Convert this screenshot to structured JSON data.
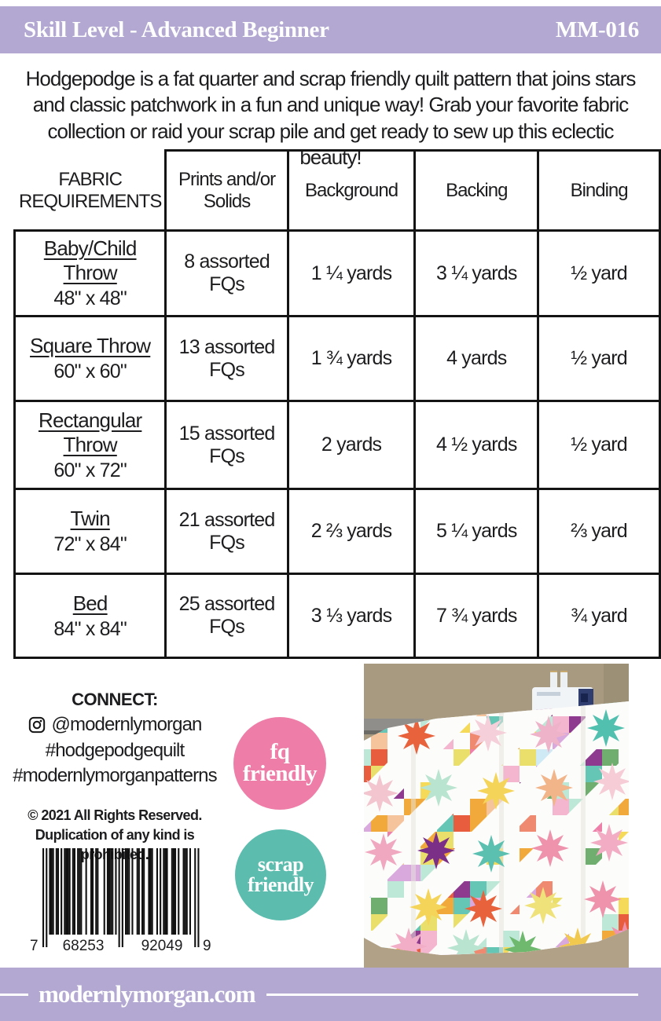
{
  "header": {
    "skill_level": "Skill Level - Advanced Beginner",
    "pattern_number": "MM-016"
  },
  "intro": "Hodgepodge is a fat quarter and scrap friendly quilt pattern that joins stars and classic patchwork in a fun and unique way!  Grab your favorite fabric collection or raid your scrap pile and get ready to sew up this eclectic beauty!",
  "table": {
    "header": {
      "col0": "FABRIC REQUIREMENTS",
      "col1": "Prints and/or Solids",
      "col2": "Background",
      "col3": "Backing",
      "col4": "Binding"
    },
    "rows": [
      {
        "name": "Baby/Child Throw",
        "size": "48\" x 48\"",
        "prints": "8 assorted FQs",
        "background": "1 ¼ yards",
        "backing": "3 ¼ yards",
        "binding": "½ yard"
      },
      {
        "name": "Square Throw",
        "size": "60\" x 60\"",
        "prints": "13 assorted FQs",
        "background": "1 ¾ yards",
        "backing": "4 yards",
        "binding": "½ yard"
      },
      {
        "name": "Rectangular Throw",
        "size": "60\" x 72\"",
        "prints": "15 assorted FQs",
        "background": "2 yards",
        "backing": "4 ½ yards",
        "binding": "½ yard"
      },
      {
        "name": "Twin",
        "size": "72\" x 84\"",
        "prints": "21 assorted FQs",
        "background": "2 ⅔ yards",
        "backing": "5 ¼ yards",
        "binding": "⅔ yard"
      },
      {
        "name": "Bed",
        "size": "84\" x 84\"",
        "prints": "25 assorted FQs",
        "background": "3 ⅓ yards",
        "backing": "7 ¾ yards",
        "binding": "¾ yard"
      }
    ]
  },
  "connect": {
    "title": "CONNECT:",
    "instagram_handle": "@modernlymorgan",
    "hashtag1": "#hodgepodgequilt",
    "hashtag2": "#modernlymorganpatterns"
  },
  "copyright": {
    "line1": "© 2021 All Rights Reserved.",
    "line2": "Duplication of any kind is prohibited."
  },
  "barcode": {
    "digit_left": "7",
    "digits_group1": "68253",
    "digits_group2": "92049",
    "digit_right": "9"
  },
  "badges": [
    {
      "line1": "fq",
      "line2": "friendly",
      "color": "#ee7ea8"
    },
    {
      "line1": "scrap",
      "line2": "friendly",
      "color": "#5cbcae"
    }
  ],
  "footer": {
    "website": "modernlymorgan.com"
  },
  "colors": {
    "lavender_bar": "#b2a8d1",
    "text": "#1d1d1f"
  },
  "photo": {
    "wall": "#a79a80",
    "wall_shadow": "#9c9076",
    "carpet": "#b1a187",
    "quilt_white": "#fcfcfb",
    "palette": [
      "#e85d3d",
      "#f2a93b",
      "#f5d958",
      "#bde7d6",
      "#66c6b5",
      "#f3b6ce",
      "#ee7fa9",
      "#8e3a8e",
      "#d9a9dd",
      "#f6c49c",
      "#6fae6f",
      "#ef8a70",
      "#e9df6a",
      "#cfe9f5"
    ],
    "stars": [
      [
        67,
        92,
        "#e8623c"
      ],
      [
        158,
        88,
        "#f5cfd9"
      ],
      [
        235,
        90,
        "#efb3c9"
      ],
      [
        308,
        82,
        "#52c0ae"
      ],
      [
        20,
        165,
        "#f2c5cf"
      ],
      [
        95,
        158,
        "#b9e4cf"
      ],
      [
        168,
        162,
        "#f5d45a"
      ],
      [
        242,
        158,
        "#f2b489"
      ],
      [
        316,
        150,
        "#f6ccd6"
      ],
      [
        25,
        240,
        "#f0a8c0"
      ],
      [
        92,
        238,
        "#7c2f86"
      ],
      [
        162,
        242,
        "#5bc0b0"
      ],
      [
        237,
        235,
        "#ef93ad"
      ],
      [
        312,
        228,
        "#f2adc4"
      ],
      [
        82,
        310,
        "#f5d45a"
      ],
      [
        152,
        312,
        "#e8623c"
      ],
      [
        228,
        308,
        "#f0e27a"
      ],
      [
        304,
        300,
        "#ef93ad"
      ],
      [
        57,
        360,
        "#f2aec6"
      ],
      [
        130,
        362,
        "#b9e4cf"
      ],
      [
        202,
        364,
        "#6fb96f"
      ],
      [
        272,
        360,
        "#f2c94f"
      ],
      [
        332,
        352,
        "#ef93ad"
      ]
    ]
  }
}
